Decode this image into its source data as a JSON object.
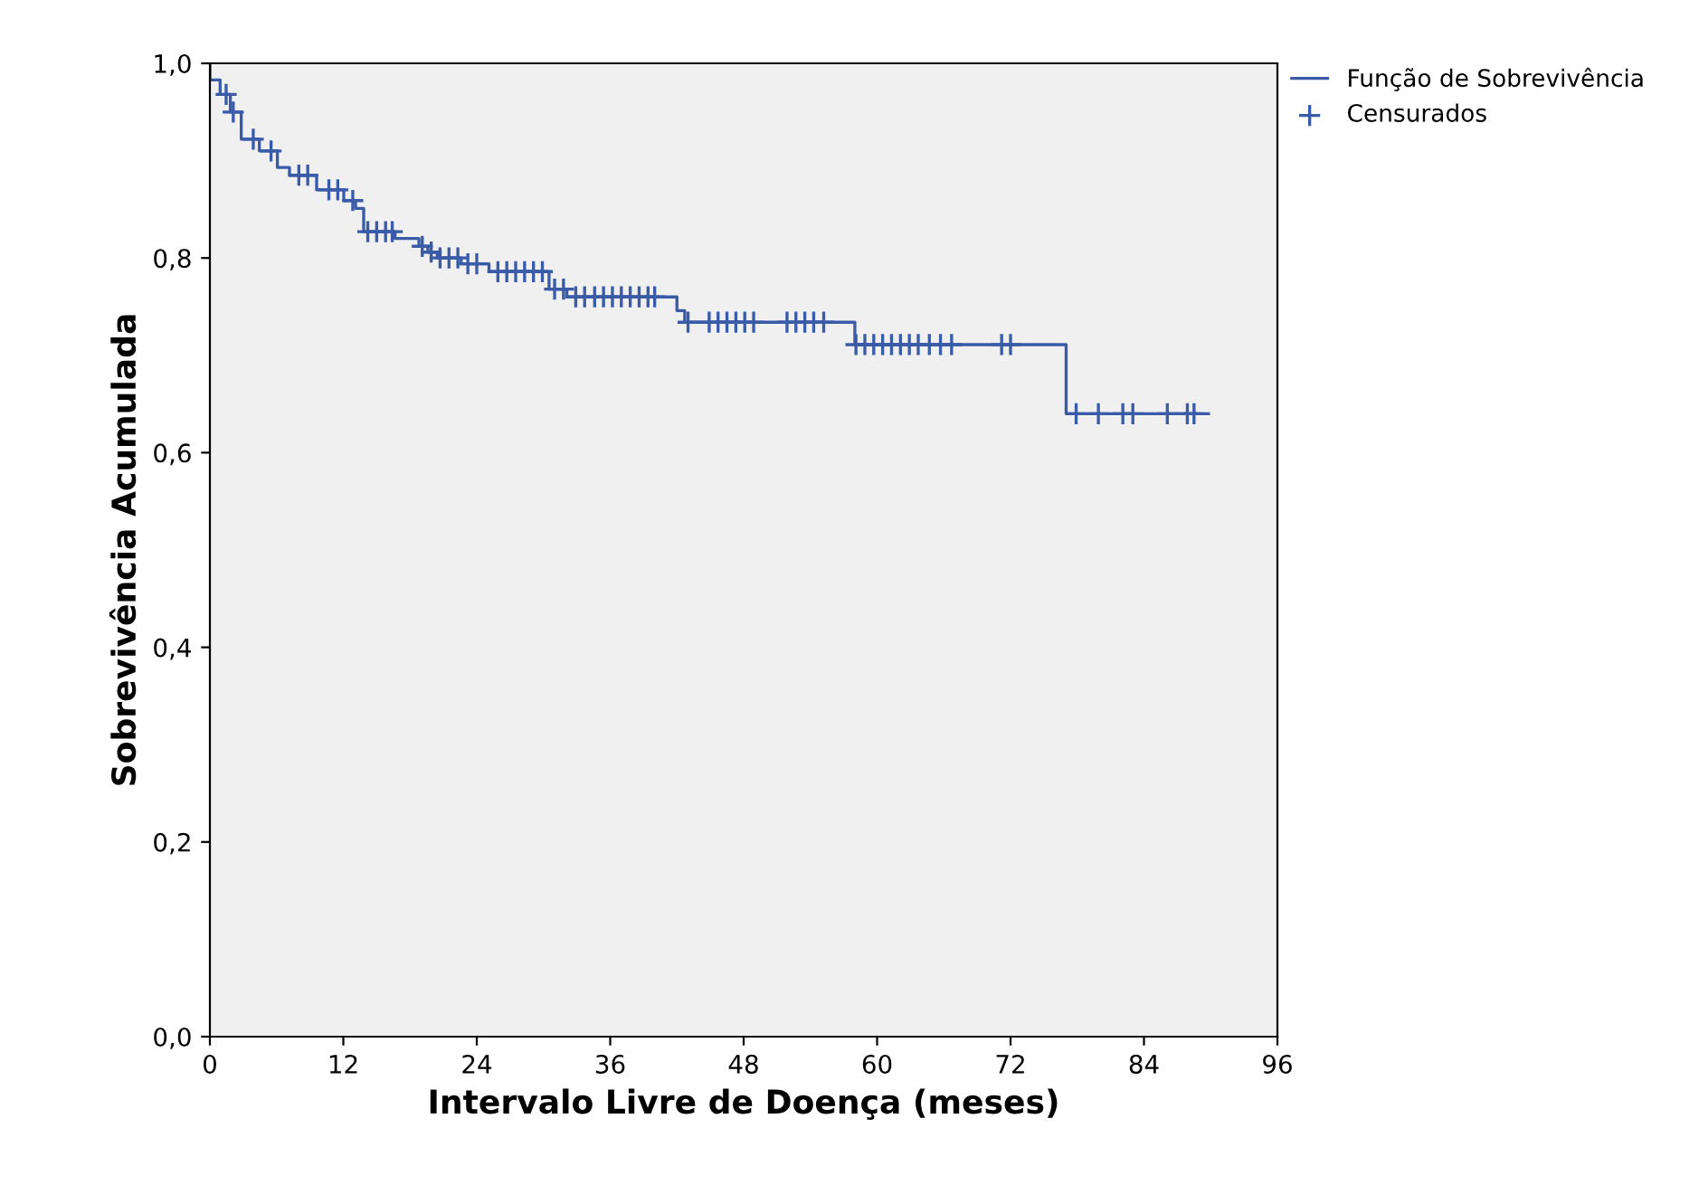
{
  "chart_data": {
    "type": "step",
    "xlabel": "Intervalo Livre de Doença (meses)",
    "ylabel": "Sobrevivência Acumulada",
    "xlim": [
      0,
      96
    ],
    "xticks": [
      0,
      12,
      24,
      36,
      48,
      60,
      72,
      84,
      96
    ],
    "ylim": [
      0,
      1
    ],
    "yticks": [
      {
        "value": 0,
        "label": "0,0"
      },
      {
        "value": 0.2,
        "label": "0,2"
      },
      {
        "value": 0.4,
        "label": "0,4"
      },
      {
        "value": 0.6,
        "label": "0,6"
      },
      {
        "value": 0.8,
        "label": "0,8"
      },
      {
        "value": 1,
        "label": "1,0"
      }
    ],
    "grid": false,
    "legend": "top right",
    "series": [
      {
        "name": "Função de Sobrevivência",
        "color": "#3a5ba8",
        "marker": "none",
        "x": [
          0,
          0.01,
          0.92,
          1.84,
          2.82,
          4.45,
          6.07,
          7.16,
          9.6,
          12.04,
          13.1,
          13.83,
          16.65,
          18.8,
          19.6,
          20.45,
          22.6,
          25.1,
          30.5,
          32.1,
          42.0,
          42.7,
          58.0,
          77.0,
          89.8
        ],
        "values": [
          1.0,
          0.983,
          0.968,
          0.95,
          0.922,
          0.91,
          0.893,
          0.885,
          0.87,
          0.859,
          0.851,
          0.827,
          0.82,
          0.812,
          0.806,
          0.8,
          0.794,
          0.786,
          0.768,
          0.76,
          0.746,
          0.734,
          0.711,
          0.64,
          0.64
        ]
      },
      {
        "name": "Censurados",
        "type": "scatter",
        "color": "#3a5ba8",
        "marker": "cross",
        "x": [
          1.46,
          2.1,
          3.9,
          5.5,
          8.0,
          8.8,
          10.7,
          11.5,
          12.85,
          14.2,
          15.0,
          15.8,
          16.4,
          19.1,
          19.9,
          20.7,
          21.5,
          22.3,
          23.2,
          24.0,
          25.9,
          26.7,
          27.5,
          28.3,
          29.1,
          29.9,
          31.0,
          31.8,
          32.9,
          33.7,
          34.6,
          35.4,
          36.2,
          37.0,
          37.8,
          38.6,
          39.4,
          40.0,
          43.0,
          44.9,
          45.7,
          46.5,
          47.3,
          48.1,
          48.9,
          51.9,
          52.7,
          53.5,
          54.3,
          55.2,
          58.1,
          58.9,
          59.7,
          60.5,
          61.3,
          62.1,
          62.9,
          63.7,
          64.7,
          65.7,
          66.7,
          71.2,
          72.0,
          77.9,
          79.9,
          82.1,
          83.0,
          86.1,
          87.9,
          88.5
        ],
        "values": [
          0.968,
          0.95,
          0.922,
          0.91,
          0.885,
          0.885,
          0.87,
          0.87,
          0.859,
          0.827,
          0.827,
          0.827,
          0.827,
          0.812,
          0.806,
          0.8,
          0.8,
          0.8,
          0.794,
          0.794,
          0.786,
          0.786,
          0.786,
          0.786,
          0.786,
          0.786,
          0.768,
          0.768,
          0.76,
          0.76,
          0.76,
          0.76,
          0.76,
          0.76,
          0.76,
          0.76,
          0.76,
          0.76,
          0.734,
          0.734,
          0.734,
          0.734,
          0.734,
          0.734,
          0.734,
          0.734,
          0.734,
          0.734,
          0.734,
          0.734,
          0.711,
          0.711,
          0.711,
          0.711,
          0.711,
          0.711,
          0.711,
          0.711,
          0.711,
          0.711,
          0.711,
          0.711,
          0.711,
          0.64,
          0.64,
          0.64,
          0.64,
          0.64,
          0.64,
          0.64
        ]
      }
    ]
  }
}
